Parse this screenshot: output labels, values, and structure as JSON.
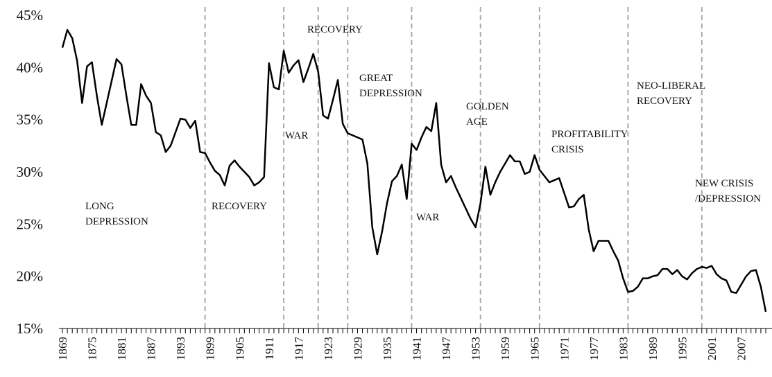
{
  "chart_data": {
    "type": "line",
    "x": [
      1869,
      1870,
      1871,
      1872,
      1873,
      1874,
      1875,
      1876,
      1877,
      1878,
      1879,
      1880,
      1881,
      1882,
      1883,
      1884,
      1885,
      1886,
      1887,
      1888,
      1889,
      1890,
      1891,
      1892,
      1893,
      1894,
      1895,
      1896,
      1897,
      1898,
      1899,
      1900,
      1901,
      1902,
      1903,
      1904,
      1905,
      1906,
      1907,
      1908,
      1909,
      1910,
      1911,
      1912,
      1913,
      1914,
      1915,
      1916,
      1917,
      1918,
      1919,
      1920,
      1921,
      1922,
      1923,
      1924,
      1925,
      1926,
      1927,
      1928,
      1929,
      1930,
      1931,
      1932,
      1933,
      1934,
      1935,
      1936,
      1937,
      1938,
      1939,
      1940,
      1941,
      1942,
      1943,
      1944,
      1945,
      1946,
      1947,
      1948,
      1949,
      1950,
      1951,
      1952,
      1953,
      1954,
      1955,
      1956,
      1957,
      1958,
      1959,
      1960,
      1961,
      1962,
      1963,
      1964,
      1965,
      1966,
      1967,
      1968,
      1969,
      1970,
      1971,
      1972,
      1973,
      1974,
      1975,
      1976,
      1977,
      1978,
      1979,
      1980,
      1981,
      1982,
      1983,
      1984,
      1985,
      1986,
      1987,
      1988,
      1989,
      1990,
      1991,
      1992,
      1993,
      1994,
      1995,
      1996,
      1997,
      1998,
      1999,
      2000,
      2001,
      2002,
      2003,
      2004,
      2005,
      2006,
      2007,
      2008,
      2009,
      2010,
      2011,
      2012
    ],
    "series": [
      {
        "color": "#000000",
        "values": [
          41.9,
          43.6,
          42.8,
          40.6,
          36.6,
          40.1,
          40.5,
          37.3,
          34.5,
          36.6,
          38.7,
          40.8,
          40.3,
          37.3,
          34.5,
          34.5,
          38.4,
          37.3,
          36.6,
          33.8,
          33.5,
          31.9,
          32.5,
          33.8,
          35.1,
          35.0,
          34.2,
          34.9,
          31.9,
          31.8,
          30.9,
          30.1,
          29.7,
          28.7,
          30.6,
          31.1,
          30.5,
          30.0,
          29.5,
          28.7,
          29.0,
          29.5,
          40.4,
          38.1,
          37.9,
          41.6,
          39.5,
          40.2,
          40.7,
          38.6,
          39.9,
          41.3,
          39.6,
          35.4,
          35.1,
          36.9,
          38.8,
          34.6,
          33.7,
          33.5,
          33.3,
          33.1,
          30.8,
          24.7,
          22.1,
          24.3,
          27.0,
          29.1,
          29.6,
          30.7,
          27.4,
          32.7,
          32.1,
          33.3,
          34.3,
          33.9,
          36.6,
          30.7,
          29.0,
          29.6,
          28.5,
          27.5,
          26.5,
          25.5,
          24.7,
          27.0,
          30.5,
          27.8,
          29.0,
          30.0,
          30.8,
          31.6,
          31.0,
          31.0,
          29.8,
          30.0,
          31.6,
          30.2,
          29.6,
          29.0,
          29.2,
          29.4,
          28.0,
          26.6,
          26.7,
          27.4,
          27.8,
          24.5,
          22.4,
          23.4,
          23.4,
          23.4,
          22.4,
          21.5,
          19.8,
          18.5,
          18.6,
          19.0,
          19.8,
          19.8,
          20.0,
          20.1,
          20.7,
          20.7,
          20.2,
          20.6,
          20.0,
          19.7,
          20.3,
          20.7,
          20.9,
          20.8,
          21.0,
          20.2,
          19.8,
          19.6,
          18.5,
          18.4,
          19.2,
          20.0,
          20.5,
          20.6,
          19.0,
          16.6
        ]
      }
    ],
    "xlim": [
      1869,
      2012
    ],
    "xticks": [
      1869,
      1875,
      1881,
      1887,
      1893,
      1899,
      1905,
      1911,
      1917,
      1923,
      1929,
      1935,
      1941,
      1947,
      1953,
      1959,
      1965,
      1971,
      1977,
      1983,
      1989,
      1995,
      2001,
      2007
    ],
    "ylim": [
      15,
      45
    ],
    "yticks": [
      {
        "value": 15,
        "label": "15%"
      },
      {
        "value": 20,
        "label": "20%"
      },
      {
        "value": 25,
        "label": "25%"
      },
      {
        "value": 30,
        "label": "30%"
      },
      {
        "value": 35,
        "label": "35%"
      },
      {
        "value": 40,
        "label": "40%"
      },
      {
        "value": 45,
        "label": "45%"
      }
    ],
    "period_lines": [
      1898,
      1914,
      1921,
      1927,
      1940,
      1954,
      1966,
      1984,
      1999
    ],
    "annotations": [
      {
        "lines": [
          "LONG",
          "DEPRESSION"
        ]
      },
      {
        "lines": [
          "RECOVERY"
        ]
      },
      {
        "lines": [
          "WAR"
        ]
      },
      {
        "lines": [
          "RECOVERY"
        ]
      },
      {
        "lines": [
          "GREAT",
          "DEPRESSION"
        ]
      },
      {
        "lines": [
          "WAR"
        ]
      },
      {
        "lines": [
          "GOLDEN",
          "AGE"
        ]
      },
      {
        "lines": [
          "PROFITABILITY",
          "CRISIS"
        ]
      },
      {
        "lines": [
          "NEO-LIBERAL",
          "RECOVERY"
        ]
      },
      {
        "lines": [
          "NEW CRISIS",
          "/DEPRESSION"
        ]
      }
    ]
  }
}
